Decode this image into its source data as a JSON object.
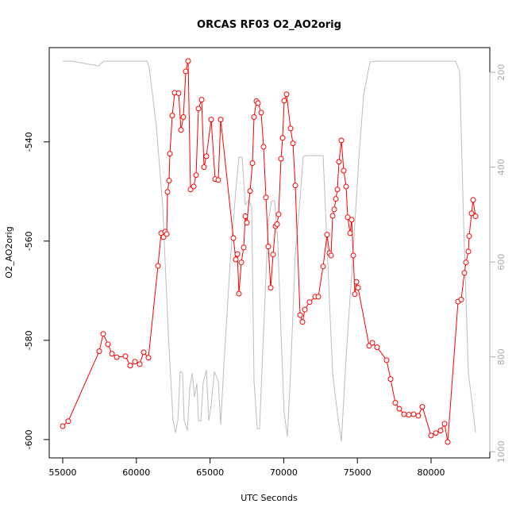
{
  "chart_data": {
    "type": "line",
    "title": "ORCAS RF03 O2_AO2orig",
    "xlabel": "UTC Seconds",
    "ylabel": "O2_AO2orig",
    "xlim": [
      54084,
      83987
    ],
    "xticks": [
      55000,
      60000,
      65000,
      70000,
      75000,
      80000
    ],
    "ylim": [
      -603.7,
      -521
    ],
    "yticks": [
      -600,
      -580,
      -560,
      -540
    ],
    "y2lim": [
      1013,
      148
    ],
    "y2ticks": [
      200,
      400,
      600,
      800,
      1000
    ],
    "y2color": "#aaaaaa",
    "series": [
      {
        "color": "#bebebe",
        "axis": "y2",
        "markers": false,
        "x": [
          55000,
          55647,
          57425,
          57802,
          60711,
          60873,
          61358,
          61789,
          62166,
          62489,
          62651,
          62813,
          62974,
          63136,
          63244,
          63459,
          63621,
          63782,
          63944,
          64106,
          64213,
          64375,
          64537,
          64752,
          64914,
          65076,
          65291,
          65560,
          65722,
          65938,
          66369,
          66745,
          66961,
          67177,
          67392,
          67608,
          67823,
          67985,
          68201,
          68362,
          68578,
          68955,
          69170,
          69386,
          69602,
          69817,
          70032,
          70248,
          70464,
          70787,
          71110,
          71326,
          71542,
          72027,
          72673,
          72942,
          73320,
          73643,
          73912,
          74235,
          74666,
          75097,
          75420,
          75851,
          76336,
          78761,
          81670,
          81940,
          82209,
          82533,
          82802,
          83018
        ],
        "values": [
          176.6,
          176.6,
          186.6,
          176.6,
          176.6,
          190.0,
          315.5,
          482.8,
          750.6,
          934.7,
          959.8,
          934.7,
          831.0,
          834.3,
          934.7,
          954.8,
          867.8,
          834.3,
          884.5,
          856.1,
          934.7,
          934.7,
          854.4,
          827.6,
          934.7,
          901.3,
          831.0,
          851.0,
          943.1,
          817.6,
          600.0,
          449.4,
          379.1,
          379.1,
          479.5,
          469.5,
          482.8,
          851.0,
          951.4,
          951.4,
          784.1,
          516.3,
          471.1,
          471.1,
          558.2,
          750.6,
          918.0,
          968.2,
          834.3,
          583.3,
          466.1,
          377.4,
          375.7,
          375.7,
          375.7,
          566.5,
          834.3,
          918.0,
          978.2,
          800.8,
          600.0,
          382.4,
          248.5,
          178.2,
          176.6,
          176.6,
          176.6,
          198.3,
          516.3,
          834.3,
          901.3,
          959.8
        ]
      },
      {
        "color": "#ff0000",
        "markers": true,
        "x": [
          55000,
          55377,
          57478,
          57748,
          58071,
          58341,
          58664,
          59257,
          59580,
          59903,
          60226,
          60496,
          60819,
          61466,
          61681,
          61843,
          61951,
          62058,
          62112,
          62220,
          62274,
          62435,
          62597,
          62866,
          63028,
          63190,
          63351,
          63513,
          63675,
          63890,
          64052,
          64213,
          64429,
          64591,
          64752,
          65076,
          65345,
          65560,
          65722,
          66584,
          66745,
          66853,
          66961,
          67123,
          67285,
          67392,
          67500,
          67716,
          67877,
          67985,
          68147,
          68254,
          68470,
          68632,
          68793,
          68955,
          69117,
          69278,
          69440,
          69548,
          69655,
          69817,
          69925,
          70032,
          70194,
          70464,
          70626,
          70787,
          71110,
          71272,
          71434,
          71757,
          72134,
          72350,
          72673,
          72942,
          73104,
          73212,
          73320,
          73427,
          73535,
          73643,
          73750,
          73912,
          74074,
          74235,
          74343,
          74505,
          74613,
          74720,
          74828,
          74936,
          75044,
          75798,
          76013,
          76336,
          76983,
          77252,
          77575,
          77845,
          78168,
          78491,
          78815,
          79138,
          79407,
          80000,
          80323,
          80647,
          80916,
          81131,
          81832,
          82048,
          82263,
          82371,
          82533,
          82587,
          82748,
          82856,
          83018
        ],
        "values": [
          -597.3,
          -596.3,
          -582.2,
          -578.7,
          -580.8,
          -582.7,
          -583.4,
          -583.2,
          -585.1,
          -584.3,
          -584.8,
          -582.4,
          -583.5,
          -565.0,
          -558.4,
          -559.2,
          -558.1,
          -558.6,
          -550.1,
          -547.8,
          -542.4,
          -534.7,
          -530.1,
          -530.2,
          -537.6,
          -535.0,
          -525.8,
          -523.7,
          -549.6,
          -549.0,
          -546.7,
          -533.3,
          -531.5,
          -545.1,
          -542.9,
          -535.5,
          -547.5,
          -547.7,
          -535.5,
          -559.4,
          -563.7,
          -562.6,
          -570.6,
          -564.3,
          -561.3,
          -555.0,
          -556.3,
          -549.9,
          -544.3,
          -535.0,
          -531.8,
          -532.2,
          -534.1,
          -541.0,
          -551.2,
          -561.1,
          -569.4,
          -562.7,
          -557.0,
          -556.6,
          -554.6,
          -543.4,
          -539.2,
          -531.7,
          -530.4,
          -537.3,
          -540.3,
          -548.8,
          -574.9,
          -576.3,
          -573.8,
          -572.3,
          -571.2,
          -571.2,
          -565.1,
          -558.7,
          -562.4,
          -562.9,
          -554.9,
          -553.6,
          -551.5,
          -549.6,
          -544.0,
          -539.7,
          -545.8,
          -549.0,
          -555.2,
          -558.4,
          -555.7,
          -562.9,
          -570.7,
          -568.2,
          -569.4,
          -581.1,
          -580.5,
          -581.4,
          -584.0,
          -587.8,
          -592.6,
          -593.8,
          -594.9,
          -595.0,
          -594.9,
          -595.2,
          -593.4,
          -599.2,
          -598.7,
          -598.2,
          -596.8,
          -600.5,
          -572.2,
          -571.8,
          -566.4,
          -564.3,
          -562.1,
          -559.0,
          -554.4,
          -551.7,
          -555.0
        ]
      }
    ]
  }
}
